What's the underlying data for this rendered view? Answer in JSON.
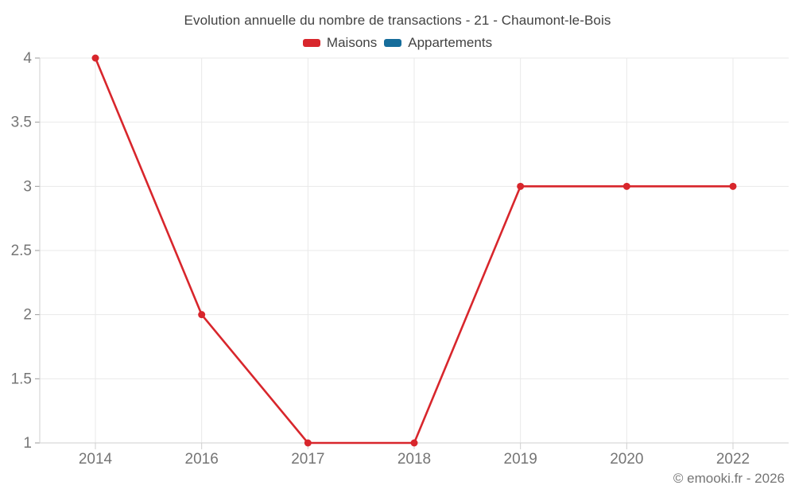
{
  "chart_data": {
    "type": "line",
    "title": "Evolution annuelle du nombre de transactions - 21 - Chaumont-le-Bois",
    "categories": [
      "2014",
      "2016",
      "2017",
      "2018",
      "2019",
      "2020",
      "2022"
    ],
    "series": [
      {
        "name": "Maisons",
        "color": "#d8262c",
        "values": [
          4,
          2,
          1,
          1,
          3,
          3,
          3
        ]
      },
      {
        "name": "Appartements",
        "color": "#166d9b",
        "values": []
      }
    ],
    "yticks": [
      1,
      1.5,
      2,
      2.5,
      3,
      3.5,
      4
    ],
    "ylim": [
      1,
      4
    ],
    "grid": true,
    "legend_position": "top",
    "xlabel": "",
    "ylabel": "",
    "colors": {
      "grid": "#e9e9e9",
      "axis": "#cfcfcf",
      "tick": "#9a9a9a",
      "label": "#757575",
      "title": "#424242"
    }
  },
  "footer": {
    "credit": "© emooki.fr - 2026"
  }
}
